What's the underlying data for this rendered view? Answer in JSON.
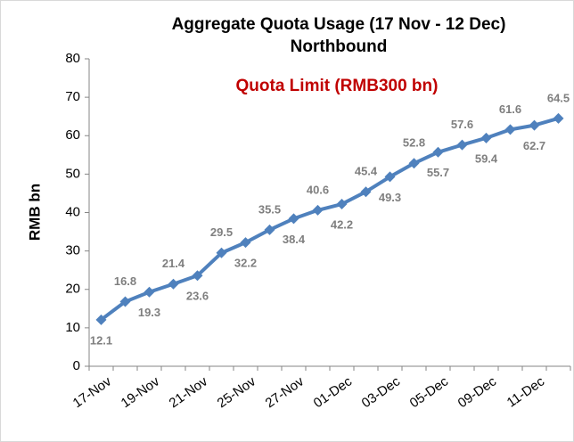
{
  "chart_data": {
    "type": "line",
    "title": "Aggregate Quota Usage (17 Nov - 12 Dec)",
    "subtitle": "Northbound",
    "annotation": "Quota Limit (RMB300 bn)",
    "y_label": "RMB bn",
    "categories": [
      "17-Nov",
      null,
      "19-Nov",
      null,
      "21-Nov",
      null,
      "25-Nov",
      null,
      "27-Nov",
      null,
      "01-Dec",
      null,
      "03-Dec",
      null,
      "05-Dec",
      null,
      "09-Dec",
      null,
      "11-Dec",
      null
    ],
    "series": [
      {
        "name": "Aggregate Quota Usage",
        "color": "#4f81bd",
        "values": [
          12.1,
          16.8,
          19.3,
          21.4,
          23.6,
          29.5,
          32.2,
          35.5,
          38.4,
          40.6,
          42.2,
          45.4,
          49.3,
          52.8,
          55.7,
          57.6,
          59.4,
          61.6,
          62.7,
          64.5
        ]
      }
    ],
    "ylim": [
      0,
      80
    ],
    "yticks": [
      0,
      10,
      20,
      30,
      40,
      50,
      60,
      70,
      80
    ],
    "grid": false
  }
}
